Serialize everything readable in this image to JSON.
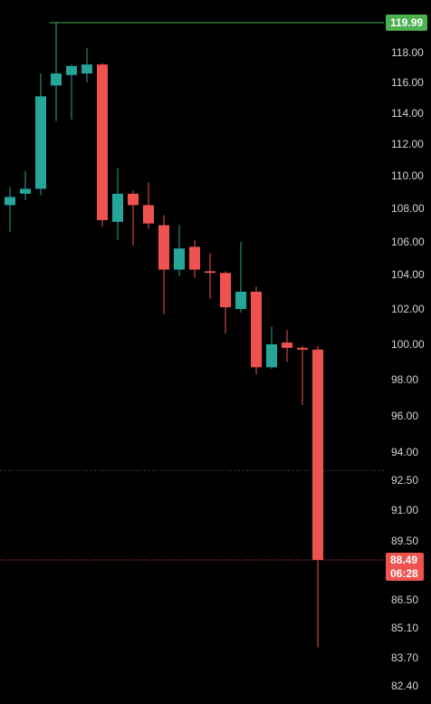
{
  "chart_data": {
    "type": "candlestick",
    "y_axis_ticks": [
      "118.00",
      "116.00",
      "114.00",
      "112.00",
      "110.00",
      "108.00",
      "106.00",
      "104.00",
      "102.00",
      "100.00",
      "98.00",
      "96.00",
      "94.00",
      "92.50",
      "91.00",
      "89.50",
      "86.50",
      "85.10",
      "83.70",
      "82.40"
    ],
    "candles": [
      {
        "open": 108.2,
        "high": 109.3,
        "low": 106.6,
        "close": 108.7
      },
      {
        "open": 108.9,
        "high": 110.3,
        "low": 108.5,
        "close": 109.2
      },
      {
        "open": 109.2,
        "high": 116.6,
        "low": 108.8,
        "close": 115.1
      },
      {
        "open": 115.8,
        "high": 119.99,
        "low": 113.5,
        "close": 116.6
      },
      {
        "open": 116.5,
        "high": 117.2,
        "low": 113.6,
        "close": 117.1
      },
      {
        "open": 116.6,
        "high": 118.3,
        "low": 116.0,
        "close": 117.2
      },
      {
        "open": 117.2,
        "high": 117.3,
        "low": 106.9,
        "close": 107.3
      },
      {
        "open": 107.2,
        "high": 110.5,
        "low": 106.1,
        "close": 108.9
      },
      {
        "open": 108.9,
        "high": 109.1,
        "low": 105.8,
        "close": 108.2
      },
      {
        "open": 108.2,
        "high": 109.6,
        "low": 106.8,
        "close": 107.1
      },
      {
        "open": 107.0,
        "high": 107.6,
        "low": 101.7,
        "close": 104.3
      },
      {
        "open": 104.3,
        "high": 107.0,
        "low": 103.9,
        "close": 105.6
      },
      {
        "open": 105.7,
        "high": 106.1,
        "low": 103.8,
        "close": 104.3
      },
      {
        "open": 104.2,
        "high": 105.3,
        "low": 102.6,
        "close": 104.1
      },
      {
        "open": 104.1,
        "high": 104.2,
        "low": 100.6,
        "close": 102.1
      },
      {
        "open": 102.0,
        "high": 106.0,
        "low": 101.8,
        "close": 103.0
      },
      {
        "open": 103.0,
        "high": 103.3,
        "low": 98.3,
        "close": 98.7
      },
      {
        "open": 98.7,
        "high": 101.0,
        "low": 98.6,
        "close": 100.0
      },
      {
        "open": 100.1,
        "high": 100.8,
        "low": 99.0,
        "close": 99.8
      },
      {
        "open": 99.8,
        "high": 99.9,
        "low": 96.6,
        "close": 99.7
      },
      {
        "open": 99.7,
        "high": 99.9,
        "low": 84.2,
        "close": 88.49
      }
    ],
    "high_price_label": "119.99",
    "high_price": 119.99,
    "last_price_label": "88.49",
    "last_price": 88.49,
    "countdown": "06:28",
    "dotted_level": 93.0,
    "colors": {
      "up": "#26a69a",
      "down": "#ef5350",
      "high_line": "#4caf50",
      "badge_high_bg": "#4caf50",
      "badge_last_bg": "#ef5350",
      "dotted_line": "#5b5f6b"
    }
  }
}
